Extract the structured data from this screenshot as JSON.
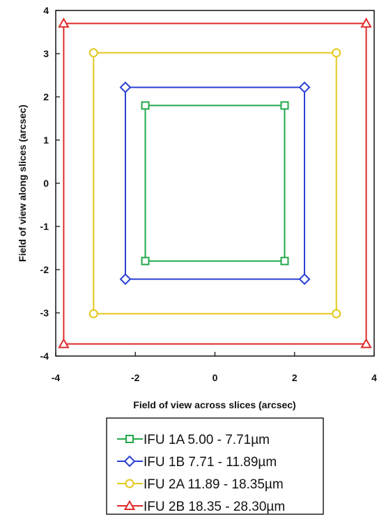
{
  "chart_data": {
    "type": "line",
    "xlabel": "Field of view across slices (arcsec)",
    "ylabel": "Field of view along slices (arcsec)",
    "xlim": [
      -4,
      4
    ],
    "ylim": [
      -4,
      4
    ],
    "xticks": [
      "-4",
      "-2",
      "0",
      "2",
      "4"
    ],
    "yticks": [
      "4",
      "3",
      "2",
      "1",
      "0",
      "-1",
      "-2",
      "-3",
      "-4"
    ],
    "grid": false,
    "legend_position": "bottom",
    "series": [
      {
        "name": "IFU 1A   5.00 -   7.71µm",
        "color": "#22a84a",
        "marker": "square",
        "x": [
          -1.75,
          1.75,
          1.75,
          -1.75,
          -1.75
        ],
        "y": [
          1.8,
          1.8,
          -1.8,
          -1.8,
          1.8
        ]
      },
      {
        "name": "IFU 1B   7.71 - 11.89µm",
        "color": "#2a3fd4",
        "marker": "diamond",
        "x": [
          -2.25,
          2.25,
          2.25,
          -2.25,
          -2.25
        ],
        "y": [
          2.22,
          2.22,
          -2.22,
          -2.22,
          2.22
        ]
      },
      {
        "name": "IFU 2A 11.89 - 18.35µm",
        "color": "#e3c81c",
        "marker": "circle",
        "x": [
          -3.05,
          3.05,
          3.05,
          -3.05,
          -3.05
        ],
        "y": [
          3.02,
          3.02,
          -3.02,
          -3.02,
          3.02
        ]
      },
      {
        "name": "IFU 2B 18.35 - 28.30µm",
        "color": "#e02a2a",
        "marker": "triangle",
        "x": [
          -3.8,
          3.8,
          3.8,
          -3.8,
          -3.8
        ],
        "y": [
          3.7,
          3.7,
          -3.72,
          -3.72,
          3.7
        ]
      }
    ]
  }
}
